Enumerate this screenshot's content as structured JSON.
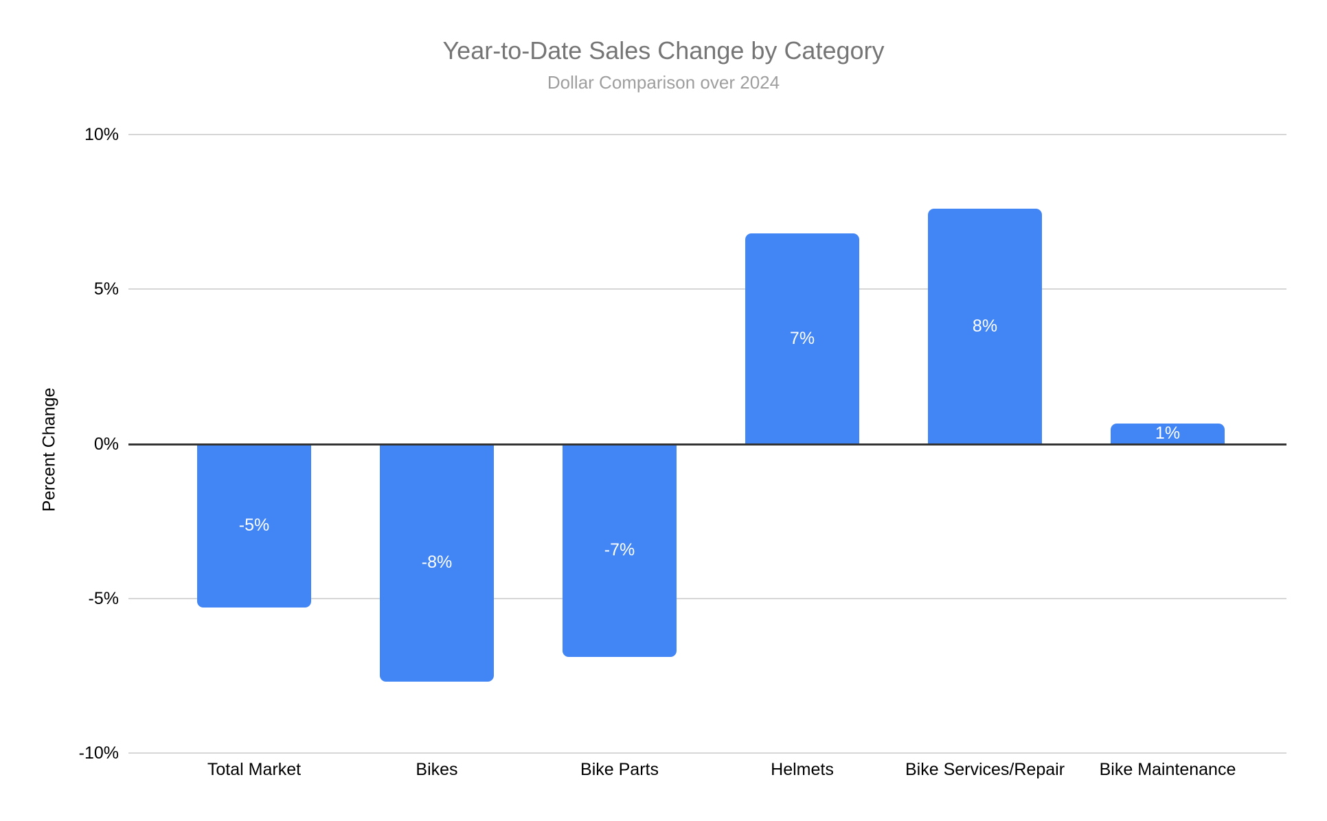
{
  "chart_data": {
    "type": "bar",
    "title": "Year-to-Date Sales Change by Category",
    "subtitle": "Dollar Comparison over 2024",
    "xlabel": "",
    "ylabel": "Percent Change",
    "categories": [
      "Total Market",
      "Bikes",
      "Bike Parts",
      "Helmets",
      "Bike Services/Repair",
      "Bike Maintenance"
    ],
    "values": [
      -5.3,
      -7.7,
      -6.9,
      6.8,
      7.6,
      0.65
    ],
    "bar_labels": [
      "-5%",
      "-8%",
      "-7%",
      "7%",
      "8%",
      "1%"
    ],
    "ylim": [
      -10,
      10
    ],
    "yticks": [
      {
        "value": 10,
        "label": "10%"
      },
      {
        "value": 5,
        "label": "5%"
      },
      {
        "value": 0,
        "label": "0%"
      },
      {
        "value": -5,
        "label": "-5%"
      },
      {
        "value": -10,
        "label": "-10%"
      }
    ],
    "legend": "none",
    "grid": true,
    "colors": {
      "bar": "#4285f4",
      "bar_label_text": "#ffffff",
      "gridline": "#d6d6d6",
      "zero_line": "#333333",
      "axis_text": "#000000",
      "title_text": "#757575",
      "subtitle_text": "#9e9e9e",
      "background": "#ffffff"
    }
  }
}
